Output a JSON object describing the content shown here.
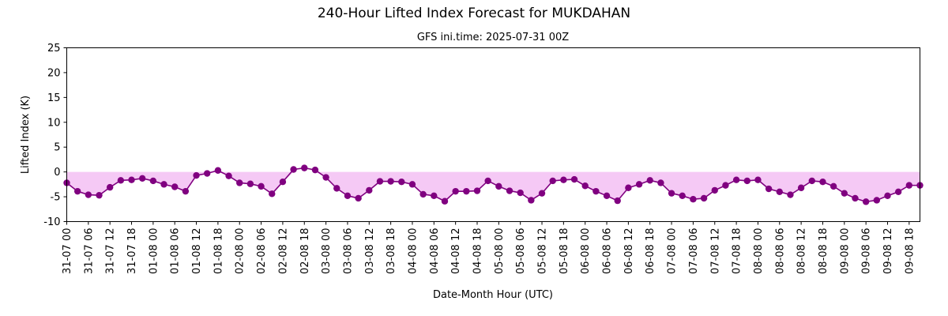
{
  "chart_data": {
    "type": "line",
    "title": "240-Hour Lifted Index Forecast for MUKDAHAN",
    "subtitle": "GFS ini.time: 2025-07-31 00Z",
    "xlabel": "Date-Month Hour (UTC)",
    "ylabel": "Lifted Index (K)",
    "ylim": [
      -10,
      25
    ],
    "yticks": [
      -10,
      -5,
      0,
      5,
      10,
      15,
      20,
      25
    ],
    "xticks": [
      "31-07 00",
      "31-07 06",
      "31-07 12",
      "31-07 18",
      "01-08 00",
      "01-08 06",
      "01-08 12",
      "01-08 18",
      "02-08 00",
      "02-08 06",
      "02-08 12",
      "02-08 18",
      "03-08 00",
      "03-08 06",
      "03-08 12",
      "03-08 18",
      "04-08 00",
      "04-08 06",
      "04-08 12",
      "04-08 18",
      "05-08 00",
      "05-08 06",
      "05-08 12",
      "05-08 18",
      "06-08 00",
      "06-08 06",
      "06-08 12",
      "06-08 18",
      "07-08 00",
      "07-08 06",
      "07-08 12",
      "07-08 18",
      "08-08 00",
      "08-08 06",
      "08-08 12",
      "08-08 18",
      "09-08 00",
      "09-08 06",
      "09-08 12",
      "09-08 18"
    ],
    "x_step_hours": 3,
    "grid": false,
    "fill_below_zero": true,
    "colors": {
      "line": "#800080",
      "fill": "#f5c9f5",
      "axes": "#000000"
    },
    "series": [
      {
        "values": [
          -2.2,
          -3.9,
          -4.6,
          -4.7,
          -3.1,
          -1.7,
          -1.6,
          -1.3,
          -1.8,
          -2.5,
          -3.0,
          -3.9,
          -0.7,
          -0.3,
          0.3,
          -0.8,
          -2.2,
          -2.4,
          -2.9,
          -4.4,
          -2.0,
          0.5,
          0.8,
          0.4,
          -1.1,
          -3.3,
          -4.8,
          -5.3,
          -3.7,
          -1.9,
          -1.9,
          -2.0,
          -2.5,
          -4.5,
          -4.8,
          -5.9,
          -3.9,
          -3.9,
          -3.8,
          -1.8,
          -2.9,
          -3.8,
          -4.2,
          -5.7,
          -4.3,
          -1.8,
          -1.6,
          -1.5,
          -2.8,
          -3.9,
          -4.8,
          -5.8,
          -3.2,
          -2.5,
          -1.7,
          -2.2,
          -4.3,
          -4.8,
          -5.5,
          -5.3,
          -3.7,
          -2.7,
          -1.6,
          -1.8,
          -1.6,
          -3.4,
          -4.0,
          -4.6,
          -3.2,
          -1.8,
          -2.0,
          -2.9,
          -4.3,
          -5.3,
          -6.0,
          -5.7,
          -4.8,
          -4.0,
          -2.7,
          -2.7
        ]
      }
    ]
  }
}
